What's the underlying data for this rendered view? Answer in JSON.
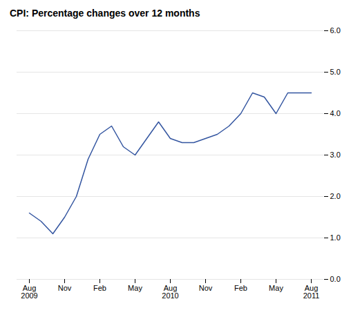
{
  "chart_data": {
    "type": "line",
    "title": "CPI: Percentage changes over 12 months",
    "categories": [
      "Aug\n2009",
      null,
      null,
      "Nov",
      null,
      null,
      "Feb",
      null,
      null,
      "May",
      null,
      null,
      "Aug\n2010",
      null,
      null,
      "Nov",
      null,
      null,
      "Feb",
      null,
      null,
      "May",
      null,
      null,
      "Aug\n2011"
    ],
    "values": [
      1.6,
      1.4,
      1.1,
      1.5,
      2.0,
      2.9,
      3.5,
      3.7,
      3.2,
      3.0,
      3.4,
      3.8,
      3.4,
      3.3,
      3.3,
      3.4,
      3.5,
      3.7,
      4.0,
      4.5,
      4.4,
      4.0,
      4.5,
      4.5,
      4.5
    ],
    "color": "#3355a0",
    "ylim": [
      0,
      6
    ],
    "yticks": [
      0,
      1,
      2,
      3,
      4,
      5,
      6
    ],
    "grid": true
  }
}
